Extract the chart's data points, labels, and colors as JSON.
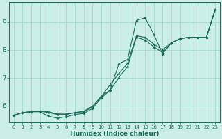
{
  "xlabel": "Humidex (Indice chaleur)",
  "bg_color": "#cceee8",
  "grid_color": "#aaddcc",
  "line_color": "#1a6b5a",
  "x_values": [
    0,
    1,
    2,
    3,
    4,
    5,
    6,
    7,
    8,
    9,
    10,
    11,
    12,
    13,
    14,
    15,
    16,
    17,
    18,
    19,
    20,
    21,
    22,
    23
  ],
  "curve1_y": [
    5.65,
    5.75,
    5.78,
    5.8,
    5.78,
    5.7,
    5.7,
    5.75,
    5.78,
    5.95,
    6.35,
    6.55,
    7.5,
    7.65,
    9.05,
    9.15,
    8.55,
    7.85,
    8.25,
    8.4,
    8.45,
    8.45,
    8.45,
    9.45
  ],
  "curve2_y": [
    5.65,
    5.75,
    5.78,
    5.8,
    5.75,
    5.68,
    5.68,
    5.75,
    5.8,
    5.98,
    6.32,
    6.75,
    7.15,
    7.52,
    8.5,
    8.45,
    8.2,
    8.0,
    8.25,
    8.4,
    8.45,
    8.45,
    8.45,
    9.45
  ],
  "curve3_y": [
    5.65,
    5.75,
    5.78,
    5.78,
    5.62,
    5.55,
    5.6,
    5.68,
    5.72,
    5.9,
    6.28,
    6.55,
    7.0,
    7.4,
    8.45,
    8.35,
    8.1,
    7.9,
    8.25,
    8.4,
    8.45,
    8.45,
    8.45,
    9.45
  ],
  "ylim": [
    5.4,
    9.7
  ],
  "yticks": [
    6,
    7,
    8,
    9
  ],
  "xticks": [
    0,
    1,
    2,
    3,
    4,
    5,
    6,
    7,
    8,
    9,
    10,
    11,
    12,
    13,
    14,
    15,
    16,
    17,
    18,
    19,
    20,
    21,
    22,
    23
  ]
}
